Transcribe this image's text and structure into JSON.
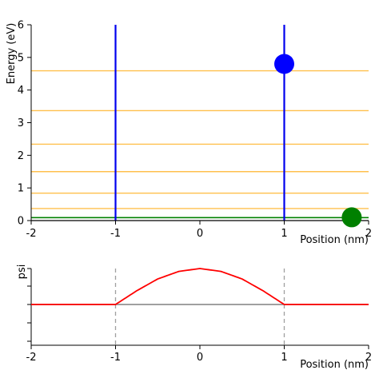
{
  "chart_data": [
    {
      "type": "line",
      "panel": "energy",
      "xlabel": "Position (nm)",
      "ylabel": "Energy (eV)",
      "xlim": [
        -2,
        2
      ],
      "ylim": [
        0,
        6
      ],
      "x_ticks": [
        "-2",
        "-1",
        "0",
        "1",
        "2"
      ],
      "y_ticks": [
        "0",
        "1",
        "2",
        "3",
        "4",
        "5",
        "6"
      ],
      "walls": [
        {
          "x": -1,
          "y_from": 0,
          "y_to": 6,
          "color": "#0000ee"
        },
        {
          "x": 1,
          "y_from": 0,
          "y_to": 6,
          "color": "#0000ee"
        }
      ],
      "energy_levels": [
        0.09,
        0.37,
        0.84,
        1.5,
        2.34,
        3.37,
        4.59
      ],
      "energy_level_color": "#ffc04d",
      "selected_level": {
        "y": 0.09,
        "color": "#008000"
      },
      "baseline": {
        "y": 0,
        "color": "#808080"
      },
      "markers": [
        {
          "x": 1.0,
          "y": 4.8,
          "color": "#0000ff"
        },
        {
          "x": 1.8,
          "y": 0.1,
          "color": "#008000"
        }
      ]
    },
    {
      "type": "line",
      "panel": "wavefunction",
      "xlabel": "Position (nm)",
      "ylabel": "psi",
      "xlim": [
        -2,
        2
      ],
      "ylim": [
        -1.2,
        1.2
      ],
      "x_ticks": [
        "-2",
        "-1",
        "0",
        "1",
        "2"
      ],
      "well_boundaries": [
        -1,
        1
      ],
      "baseline": {
        "y": 0,
        "color": "#808080"
      },
      "series": [
        {
          "color": "#ff0000",
          "x": [
            -2,
            -1,
            -0.75,
            -0.5,
            -0.25,
            0,
            0.25,
            0.5,
            0.75,
            1,
            2
          ],
          "y": [
            0,
            0,
            0.38,
            0.71,
            0.92,
            1.0,
            0.92,
            0.71,
            0.38,
            0,
            0
          ]
        }
      ]
    }
  ]
}
